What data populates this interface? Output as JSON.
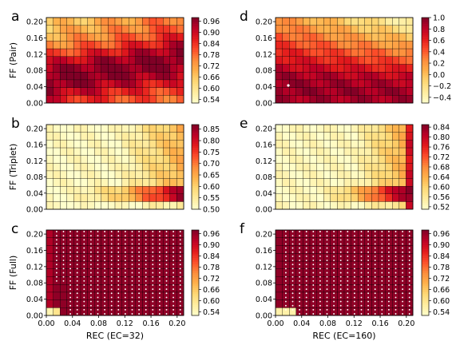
{
  "figure": {
    "row_labels": [
      "FF (Pair)",
      "FF (Triplet)",
      "FF (Full)"
    ],
    "col_labels": [
      "REC (EC=32)",
      "REC (EC=160)"
    ],
    "x_ticks": [
      "0.00",
      "0.04",
      "0.08",
      "0.12",
      "0.16",
      "0.20"
    ],
    "y_ticks": [
      "0.00",
      "0.04",
      "0.08",
      "0.12",
      "0.16",
      "0.20"
    ]
  },
  "colormap": {
    "low": "#ffffcc",
    "mid": "#fd8d3c",
    "high": "#800026"
  },
  "chart_data": [
    {
      "panel": "a",
      "type": "heatmap",
      "ylabel": "FF (Pair)",
      "xlim": [
        0,
        0.21
      ],
      "ylim": [
        0,
        0.21
      ],
      "clim": [
        0.52,
        0.98
      ],
      "colorbar_ticks": [
        "0.96",
        "0.90",
        "0.84",
        "0.78",
        "0.72",
        "0.66",
        "0.60",
        "0.54"
      ],
      "description": "High values (~0.95) along a diagonal band from low REC / ~0.06 FF toward high REC; lower (~0.55) at FF=0 and low-REC/high-FF corner"
    },
    {
      "panel": "b",
      "type": "heatmap",
      "ylabel": "FF (Triplet)",
      "xlim": [
        0,
        0.21
      ],
      "ylim": [
        0,
        0.21
      ],
      "clim": [
        0.5,
        0.87
      ],
      "colorbar_ticks": [
        "0.85",
        "0.80",
        "0.75",
        "0.70",
        "0.65",
        "0.60",
        "0.55",
        "0.50"
      ],
      "description": "Mostly ~0.50; rising toward ~0.85 at high REC and FF 0.02-0.06"
    },
    {
      "panel": "c",
      "type": "heatmap",
      "ylabel": "FF (Full)",
      "xlabel": "REC (EC=32)",
      "xlim": [
        0,
        0.21
      ],
      "ylim": [
        0,
        0.21
      ],
      "clim": [
        0.52,
        0.98
      ],
      "colorbar_ticks": [
        "0.96",
        "0.90",
        "0.84",
        "0.78",
        "0.72",
        "0.66",
        "0.60",
        "0.54"
      ],
      "description": "Uniformly ~0.97 with white markers on most cells; lower near REC≈0, FF≈0"
    },
    {
      "panel": "d",
      "type": "heatmap",
      "xlim": [
        0,
        0.21
      ],
      "ylim": [
        0,
        0.21
      ],
      "clim": [
        -0.5,
        1.0
      ],
      "colorbar_ticks": [
        "1.0",
        "0.8",
        "0.6",
        "0.4",
        "0.2",
        "0.0",
        "−0.2",
        "−0.4"
      ],
      "description": "High (~1.0) near FF 0.02-0.10; decreasing toward ~0.2 at high REC and high FF"
    },
    {
      "panel": "e",
      "type": "heatmap",
      "xlim": [
        0,
        0.21
      ],
      "ylim": [
        0,
        0.21
      ],
      "clim": [
        0.51,
        0.85
      ],
      "colorbar_ticks": [
        "0.84",
        "0.80",
        "0.76",
        "0.72",
        "0.68",
        "0.64",
        "0.60",
        "0.56",
        "0.52"
      ],
      "description": "Mostly ~0.52; increasing toward ~0.84 at high REC and FF 0.02-0.04"
    },
    {
      "panel": "f",
      "type": "heatmap",
      "xlabel": "REC (EC=160)",
      "xlim": [
        0,
        0.21
      ],
      "ylim": [
        0,
        0.21
      ],
      "clim": [
        0.52,
        0.98
      ],
      "colorbar_ticks": [
        "0.96",
        "0.90",
        "0.84",
        "0.78",
        "0.72",
        "0.66",
        "0.60",
        "0.54"
      ],
      "description": "Uniformly ~0.97 with white markers on nearly all cells; low only at REC 0-0.03, FF 0"
    }
  ]
}
